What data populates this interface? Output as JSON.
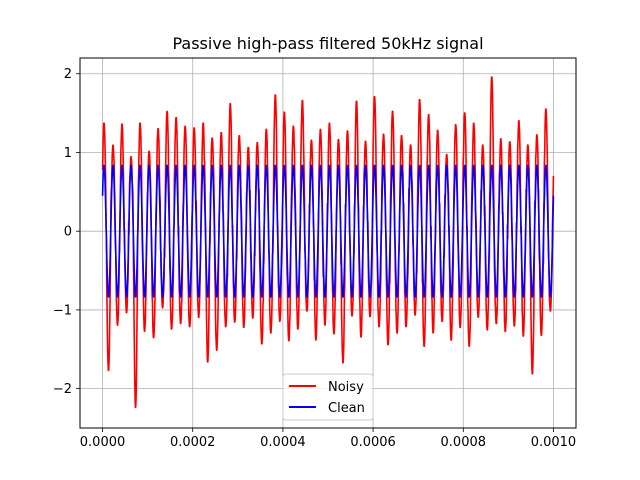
{
  "chart_data": {
    "type": "line",
    "title": "Passive high-pass filtered 50kHz signal",
    "xlabel": "",
    "ylabel": "",
    "xlim": [
      -5e-05,
      0.00105
    ],
    "ylim": [
      -2.5,
      2.2
    ],
    "xticks": [
      0.0,
      0.0002,
      0.0004,
      0.0006,
      0.0008,
      0.001
    ],
    "xtick_labels": [
      "0.0000",
      "0.0002",
      "0.0004",
      "0.0006",
      "0.0008",
      "0.0010"
    ],
    "yticks": [
      -2,
      -1,
      0,
      1,
      2
    ],
    "ytick_labels": [
      "−2",
      "−1",
      "0",
      "1",
      "2"
    ],
    "grid": true,
    "legend_position": "lower center",
    "signal": {
      "frequency_hz": 50000,
      "duration_s": 0.001,
      "clean_amplitude": 0.84
    },
    "series": [
      {
        "name": "Noisy",
        "color": "#ff0000",
        "description": "sine wave with additive noise",
        "peaks": [
          1.38,
          1.1,
          1.37,
          0.95,
          1.38,
          1.02,
          1.31,
          1.53,
          1.45,
          1.34,
          1.32,
          1.38,
          1.19,
          1.26,
          1.63,
          1.22,
          1.07,
          1.13,
          1.3,
          1.74,
          1.52,
          1.34,
          1.67,
          1.16,
          1.3,
          1.38,
          1.17,
          1.28,
          1.66,
          1.15,
          1.72,
          1.24,
          1.53,
          1.22,
          1.1,
          1.68,
          1.49,
          1.29,
          0.98,
          1.36,
          1.51,
          1.38,
          1.1,
          1.97,
          1.18,
          1.14,
          1.41,
          1.1,
          1.23,
          1.56,
          1.18,
          0.93,
          1.73
        ],
        "troughs": [
          -1.78,
          -1.2,
          -1.04,
          -2.25,
          -1.28,
          -1.36,
          -0.98,
          -1.25,
          -1.18,
          -1.22,
          -1.1,
          -1.67,
          -1.52,
          -1.22,
          -1.16,
          -1.23,
          -1.11,
          -1.44,
          -1.3,
          -1.15,
          -1.4,
          -1.25,
          -1.02,
          -1.39,
          -1.2,
          -1.31,
          -1.68,
          -1.08,
          -1.35,
          -1.09,
          -1.22,
          -1.45,
          -1.3,
          -1.22,
          -1.07,
          -1.47,
          -1.3,
          -1.15,
          -1.39,
          -1.23,
          -1.47,
          -1.1,
          -1.26,
          -1.18,
          -1.28,
          -1.21,
          -1.34,
          -1.82,
          -1.33,
          -1.02,
          -1.43,
          -1.14,
          -0.98
        ]
      },
      {
        "name": "Clean",
        "color": "#0000ff",
        "description": "pure 50kHz sine wave"
      }
    ]
  }
}
